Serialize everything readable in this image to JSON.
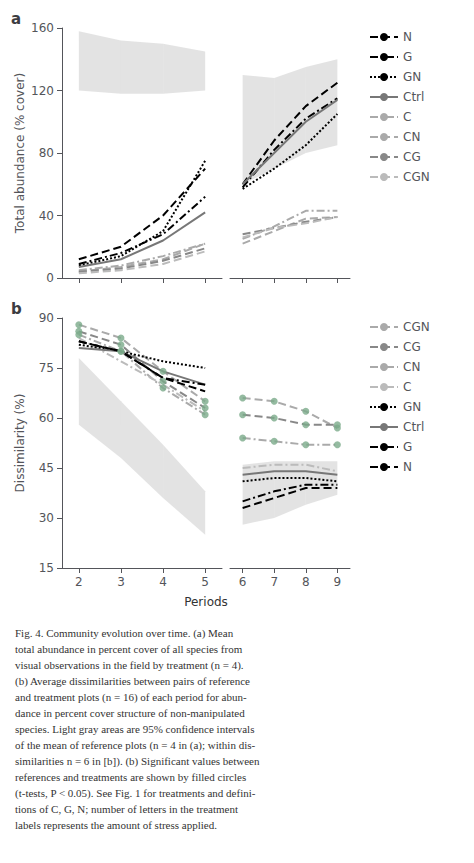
{
  "chart_data": [
    {
      "type": "line",
      "title": "a",
      "ylabel": "Total abundance (% cover)",
      "x": [
        2,
        3,
        4,
        5
      ],
      "xlim": [
        1.6,
        5.4
      ],
      "xticks": [
        2,
        3,
        4,
        5
      ],
      "ylim": [
        0,
        160
      ],
      "yticks": [
        0,
        40,
        80,
        120,
        160
      ],
      "tick_labels": "y",
      "grid": false,
      "ci_lower": [
        120,
        118,
        118,
        120
      ],
      "ci_upper": [
        158,
        152,
        150,
        145
      ],
      "ci_color": "#cccccc",
      "series": [
        {
          "name": "N",
          "color": "#000000",
          "line_style": "dashed",
          "values": [
            12,
            20,
            40,
            70
          ]
        },
        {
          "name": "G",
          "color": "#000000",
          "line_style": "dashdot",
          "values": [
            9,
            16,
            28,
            52
          ]
        },
        {
          "name": "GN",
          "color": "#000000",
          "line_style": "dotted",
          "values": [
            8,
            14,
            30,
            75
          ]
        },
        {
          "name": "Ctrl",
          "color": "#777777",
          "line_style": "solid",
          "values": [
            7,
            12,
            24,
            42
          ]
        },
        {
          "name": "C",
          "color": "#aaaaaa",
          "line_style": "dashdot",
          "values": [
            5,
            8,
            14,
            22
          ]
        },
        {
          "name": "CN",
          "color": "#aaaaaa",
          "line_style": "dashed",
          "values": [
            4,
            7,
            12,
            22
          ]
        },
        {
          "name": "CG",
          "color": "#888888",
          "line_style": "dashed",
          "values": [
            4,
            6,
            11,
            19
          ]
        },
        {
          "name": "CGN",
          "color": "#bbbbbb",
          "line_style": "dashed",
          "values": [
            3,
            5,
            9,
            17
          ]
        }
      ]
    },
    {
      "type": "line",
      "x": [
        6,
        7,
        8,
        9
      ],
      "xlim": [
        5.6,
        9.4
      ],
      "xticks": [
        6,
        7,
        8,
        9
      ],
      "ylim": [
        0,
        160
      ],
      "tick_labels": false,
      "grid": false,
      "legend": "right",
      "ci_lower": [
        60,
        70,
        80,
        85
      ],
      "ci_upper": [
        130,
        128,
        135,
        140
      ],
      "ci_color": "#cccccc",
      "series": [
        {
          "name": "N",
          "color": "#000000",
          "line_style": "dashed",
          "values": [
            60,
            88,
            110,
            125
          ]
        },
        {
          "name": "G",
          "color": "#000000",
          "line_style": "dashdot",
          "values": [
            58,
            82,
            102,
            115
          ]
        },
        {
          "name": "GN",
          "color": "#000000",
          "line_style": "dotted",
          "values": [
            57,
            70,
            85,
            105
          ]
        },
        {
          "name": "Ctrl",
          "color": "#777777",
          "line_style": "solid",
          "values": [
            60,
            80,
            100,
            114
          ]
        },
        {
          "name": "C",
          "color": "#aaaaaa",
          "line_style": "dashdot",
          "values": [
            25,
            33,
            43,
            43
          ]
        },
        {
          "name": "CN",
          "color": "#aaaaaa",
          "line_style": "dashed",
          "values": [
            22,
            30,
            38,
            39
          ]
        },
        {
          "name": "CG",
          "color": "#888888",
          "line_style": "dashed",
          "values": [
            28,
            32,
            36,
            39
          ]
        },
        {
          "name": "CGN",
          "color": "#bbbbbb",
          "line_style": "dashed",
          "values": [
            26,
            32,
            35,
            39
          ]
        }
      ]
    },
    {
      "type": "line",
      "title": "b",
      "ylabel": "Dissimilarity (%)",
      "xlabel": "Periods",
      "annotations": [
        "Fig. 4. Community evolution over time. (a) Mean\ntotal abundance in percent cover of all species from\nvisual observations in the field by treatment (n = 4).\n(b) Average dissimilarities between pairs of reference\nand treatment plots (n = 16) of each period for abun-\ndance in percent cover structure of non-manipulated\nspecies. Light gray areas are 95% confidence intervals\nof the mean of reference plots (n = 4 in (a); within dis-\nsimilarities n = 6 in [b]). (b) Significant values between\nreferences and treatments are shown by filled circles\n(t-tests, P < 0.05). See Fig. 1 for treatments and defini-\ntions of C, G, N; number of letters in the treatment\nlabels represents the amount of stress applied."
      ],
      "x": [
        2,
        3,
        4,
        5
      ],
      "xlim": [
        1.6,
        5.4
      ],
      "xticks": [
        2,
        3,
        4,
        5
      ],
      "ylim": [
        15,
        90
      ],
      "yticks": [
        15,
        30,
        45,
        60,
        75,
        90
      ],
      "tick_labels": true,
      "grid": false,
      "ci_lower": [
        58,
        48,
        36,
        25
      ],
      "ci_upper": [
        78,
        65,
        52,
        38
      ],
      "ci_color": "#cccccc",
      "marker_color": "#7aaa8a",
      "series": [
        {
          "name": "CGN",
          "color": "#aaaaaa",
          "line_style": "dashed",
          "values": [
            88,
            84,
            74,
            65
          ],
          "marker": "circle",
          "significant": [
            true,
            true,
            true,
            true
          ]
        },
        {
          "name": "CG",
          "color": "#888888",
          "line_style": "dashed",
          "values": [
            86,
            82,
            71,
            63
          ],
          "marker": "circle",
          "significant": [
            true,
            true,
            true,
            true
          ]
        },
        {
          "name": "CN",
          "color": "#aaaaaa",
          "line_style": "dashdot",
          "values": [
            85,
            80,
            69,
            61
          ],
          "marker": "circle",
          "significant": [
            true,
            true,
            true,
            true
          ]
        },
        {
          "name": "C",
          "color": "#bbbbbb",
          "line_style": "dashdot",
          "values": [
            84,
            77,
            70,
            62
          ]
        },
        {
          "name": "GN",
          "color": "#000000",
          "line_style": "dotted",
          "values": [
            82,
            80,
            77,
            75
          ],
          "marker": "circle",
          "significant": [
            false,
            true,
            false,
            false
          ]
        },
        {
          "name": "Ctrl",
          "color": "#777777",
          "line_style": "solid",
          "values": [
            81,
            80,
            74,
            70
          ]
        },
        {
          "name": "G",
          "color": "#000000",
          "line_style": "dashdot",
          "values": [
            83,
            80,
            72,
            70
          ]
        },
        {
          "name": "N",
          "color": "#000000",
          "line_style": "dashed",
          "values": [
            83,
            80,
            72,
            68
          ]
        }
      ]
    },
    {
      "type": "line",
      "x": [
        6,
        7,
        8,
        9
      ],
      "xlim": [
        5.6,
        9.4
      ],
      "xticks": [
        6,
        7,
        8,
        9
      ],
      "ylim": [
        15,
        90
      ],
      "tick_labels": "x",
      "grid": false,
      "legend": "right",
      "ci_lower": [
        28,
        30,
        34,
        37
      ],
      "ci_upper": [
        46,
        47,
        47,
        47
      ],
      "ci_color": "#cccccc",
      "marker_color": "#7aaa8a",
      "series": [
        {
          "name": "CGN",
          "color": "#aaaaaa",
          "line_style": "dashed",
          "values": [
            66,
            65,
            62,
            57
          ],
          "marker": "circle",
          "significant": [
            true,
            true,
            true,
            true
          ]
        },
        {
          "name": "CG",
          "color": "#888888",
          "line_style": "dashed",
          "values": [
            61,
            60,
            58,
            58
          ],
          "marker": "circle",
          "significant": [
            true,
            true,
            true,
            true
          ]
        },
        {
          "name": "CN",
          "color": "#aaaaaa",
          "line_style": "dashdot",
          "values": [
            54,
            53,
            52,
            52
          ],
          "marker": "circle",
          "significant": [
            true,
            true,
            true,
            true
          ]
        },
        {
          "name": "C",
          "color": "#bbbbbb",
          "line_style": "dashdot",
          "values": [
            45,
            46,
            46,
            44
          ]
        },
        {
          "name": "GN",
          "color": "#000000",
          "line_style": "dotted",
          "values": [
            41,
            42,
            42,
            41
          ]
        },
        {
          "name": "Ctrl",
          "color": "#777777",
          "line_style": "solid",
          "values": [
            43,
            44,
            44,
            43
          ]
        },
        {
          "name": "G",
          "color": "#000000",
          "line_style": "dashdot",
          "values": [
            35,
            38,
            40,
            40
          ]
        },
        {
          "name": "N",
          "color": "#000000",
          "line_style": "dashed",
          "values": [
            33,
            36,
            39,
            39
          ]
        }
      ]
    }
  ]
}
